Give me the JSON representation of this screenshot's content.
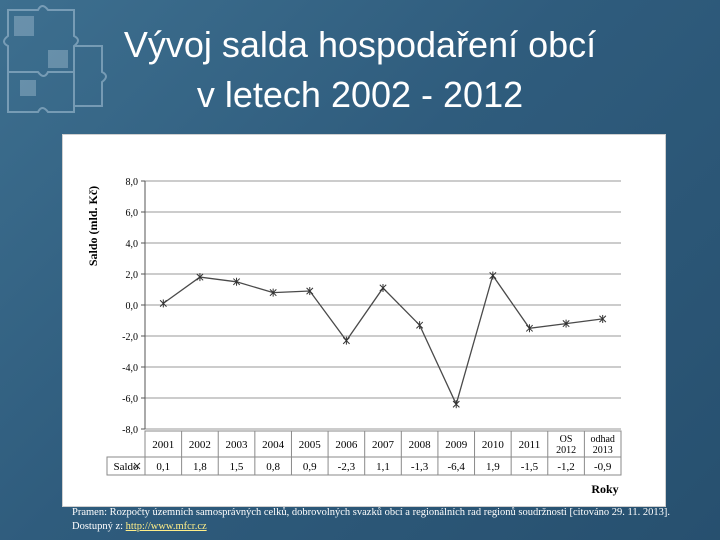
{
  "slide": {
    "title_line1": "Vývoj salda hospodaření obcí",
    "title_line2": "v letech 2002 - 2012",
    "source_text": "Pramen: Rozpočty územních samosprávných celků, dobrovolných svazků obcí a regionálních rad regionů soudržnosti [citováno 29. 11. 2013]. Dostupný z: ",
    "source_link": "http://www.mfcr.cz"
  },
  "chart_data": {
    "type": "line",
    "ylabel": "Saldo (mld. Kč)",
    "xlabel": "Roky",
    "ylim": [
      -8,
      8
    ],
    "yticks": [
      "8,0",
      "6,0",
      "4,0",
      "2,0",
      "0,0",
      "-2,0",
      "-4,0",
      "-6,0",
      "-8,0"
    ],
    "grid": true,
    "categories": [
      [
        "2001"
      ],
      [
        "2002"
      ],
      [
        "2003"
      ],
      [
        "2004"
      ],
      [
        "2005"
      ],
      [
        "2006"
      ],
      [
        "2007"
      ],
      [
        "2008"
      ],
      [
        "2009"
      ],
      [
        "2010"
      ],
      [
        "2011"
      ],
      [
        "OS",
        "2012"
      ],
      [
        "odhad",
        "2013"
      ]
    ],
    "series": [
      {
        "name": "Saldo",
        "values": [
          0.1,
          1.8,
          1.5,
          0.8,
          0.9,
          -2.3,
          1.1,
          -1.3,
          -6.4,
          1.9,
          -1.5,
          -1.2,
          -0.9
        ],
        "labels": [
          "0,1",
          "1,8",
          "1,5",
          "0,8",
          "0,9",
          "-2,3",
          "1,1",
          "-1,3",
          "-6,4",
          "1,9",
          "-1,5",
          "-1,2",
          "-0,9"
        ]
      }
    ]
  }
}
